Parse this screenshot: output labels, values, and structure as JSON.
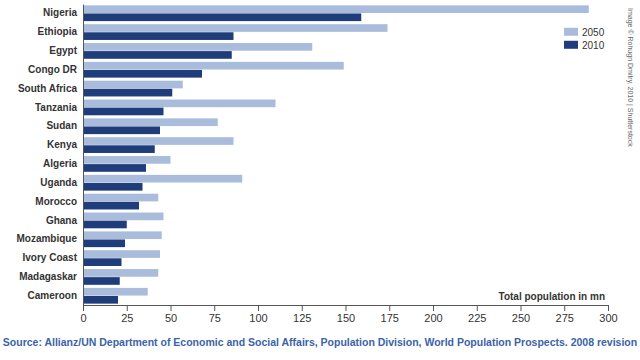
{
  "chart_data": {
    "type": "bar",
    "orientation": "horizontal",
    "categories": [
      "Nigeria",
      "Ethiopia",
      "Egypt",
      "Congo DR",
      "South Africa",
      "Tanzania",
      "Sudan",
      "Kenya",
      "Algeria",
      "Uganda",
      "Morocco",
      "Ghana",
      "Mozambique",
      "Ivory Coast",
      "Madagaskar",
      "Cameroon"
    ],
    "series": [
      {
        "name": "2050",
        "color": "#a9bcdc",
        "values": [
          289,
          174,
          131,
          149,
          57,
          110,
          77,
          86,
          50,
          91,
          43,
          46,
          45,
          44,
          43,
          37
        ]
      },
      {
        "name": "2010",
        "color": "#1f3d7a",
        "values": [
          159,
          86,
          85,
          68,
          51,
          46,
          44,
          41,
          36,
          34,
          32,
          25,
          24,
          22,
          21,
          20
        ]
      }
    ],
    "xlim": [
      0,
      300
    ],
    "xticks": [
      0,
      25,
      50,
      75,
      100,
      125,
      150,
      175,
      200,
      225,
      250,
      275,
      300
    ],
    "xlabel": "Total population in mn",
    "grid": false,
    "legend": "top-right",
    "annotations": [
      "Source: Allianz/UN Department of Economic and Social Affairs, Population Division, World Population Prospects. 2008 revision",
      "Image © Rohugn Dmitry, 2010 | Shutterstock"
    ]
  }
}
